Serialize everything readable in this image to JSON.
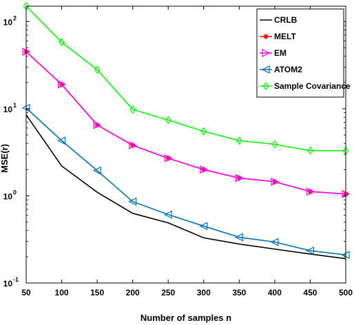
{
  "chart_data": {
    "type": "line",
    "xlabel": "Number of samples n",
    "ylabel": "MSE(r)",
    "x": [
      50,
      100,
      150,
      200,
      250,
      300,
      350,
      400,
      450,
      500
    ],
    "xlim": [
      50,
      500
    ],
    "x_ticks": [
      50,
      100,
      150,
      200,
      250,
      300,
      350,
      400,
      450,
      500
    ],
    "yscale": "log",
    "ylim": [
      0.1,
      150
    ],
    "y_ticks": [
      {
        "base": "10",
        "exp": "-1",
        "value": 0.1
      },
      {
        "base": "10",
        "exp": "0",
        "value": 1
      },
      {
        "base": "10",
        "exp": "1",
        "value": 10
      },
      {
        "base": "10",
        "exp": "2",
        "value": 100
      }
    ],
    "grid": false,
    "legend_position": "top-right",
    "series": [
      {
        "name": "CRLB",
        "color": "#000000",
        "marker": "none",
        "values": [
          8.5,
          2.2,
          1.1,
          0.63,
          0.49,
          0.33,
          0.28,
          0.245,
          0.215,
          0.19
        ]
      },
      {
        "name": "MELT",
        "color": "#ff0000",
        "marker": "asterisk",
        "values": [
          45,
          19,
          6.5,
          3.8,
          2.7,
          2.0,
          1.6,
          1.45,
          1.12,
          1.05
        ]
      },
      {
        "name": "EM",
        "color": "#ff00ff",
        "marker": "triangle-right",
        "values": [
          45,
          19,
          6.5,
          3.8,
          2.7,
          2.0,
          1.6,
          1.45,
          1.12,
          1.05
        ]
      },
      {
        "name": "ATOM2",
        "color": "#0072bd",
        "marker": "triangle-left",
        "values": [
          10.2,
          4.3,
          1.95,
          0.86,
          0.61,
          0.45,
          0.335,
          0.295,
          0.235,
          0.21
        ]
      },
      {
        "name": "Sample Covariance",
        "color": "#00ff00",
        "marker": "diamond",
        "values": [
          150,
          58,
          28,
          9.8,
          7.4,
          5.5,
          4.3,
          3.9,
          3.3,
          3.3
        ]
      }
    ]
  }
}
